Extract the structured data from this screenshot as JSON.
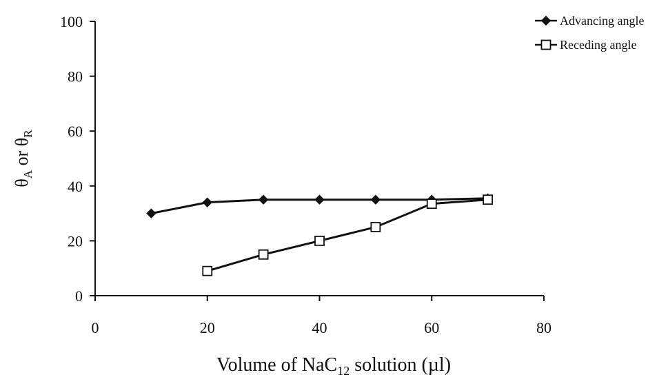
{
  "chart_data": {
    "type": "line",
    "xlabel": {
      "pre": "Volume of NaC",
      "sub": "12",
      "post": " solution (µl)"
    },
    "ylabel": {
      "p1": "θ",
      "s1": "A",
      "mid": " or θ",
      "s2": "R"
    },
    "xlim": [
      0,
      80
    ],
    "ylim": [
      0,
      100
    ],
    "xticks": [
      0,
      20,
      40,
      60,
      80
    ],
    "yticks": [
      0,
      20,
      40,
      60,
      80,
      100
    ],
    "grid": false,
    "legend_position": "top-right",
    "series": [
      {
        "name": "Advancing angle",
        "marker": "filled-diamond",
        "color": "#111111",
        "x": [
          10,
          20,
          30,
          40,
          50,
          60,
          70
        ],
        "y": [
          30,
          34,
          35,
          35,
          35,
          35,
          35.5
        ]
      },
      {
        "name": "Receding angle",
        "marker": "open-square",
        "color": "#111111",
        "x": [
          20,
          30,
          40,
          50,
          60,
          70
        ],
        "y": [
          9,
          15,
          20,
          25,
          33.5,
          35
        ]
      }
    ]
  }
}
